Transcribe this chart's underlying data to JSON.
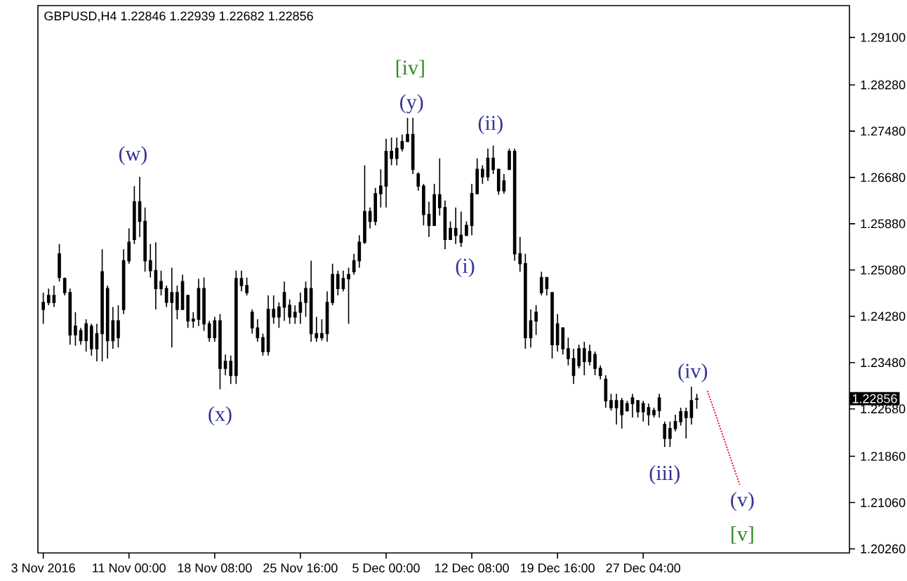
{
  "chart_data": {
    "type": "candlestick",
    "title": "GBPUSD,H4 1.22846 1.22939 1.22682 1.22856",
    "categories": [
      "3 Nov 2016",
      null,
      null,
      null,
      null,
      null,
      null,
      null,
      null,
      null,
      null,
      null,
      null,
      null,
      null,
      null,
      "11 Nov 00:00",
      null,
      null,
      null,
      null,
      null,
      null,
      null,
      null,
      null,
      null,
      null,
      null,
      null,
      null,
      null,
      "18 Nov 08:00",
      null,
      null,
      null,
      null,
      null,
      null,
      null,
      null,
      null,
      null,
      null,
      null,
      null,
      null,
      null,
      "25 Nov 16:00",
      null,
      null,
      null,
      null,
      null,
      null,
      null,
      null,
      null,
      null,
      null,
      null,
      null,
      null,
      null,
      "5 Dec 00:00",
      null,
      null,
      null,
      null,
      null,
      null,
      null,
      null,
      null,
      null,
      null,
      null,
      null,
      null,
      null,
      "12 Dec 08:00",
      null,
      null,
      null,
      null,
      null,
      null,
      null,
      null,
      null,
      null,
      null,
      null,
      null,
      null,
      null,
      "19 Dec 16:00",
      null,
      null,
      null,
      null,
      null,
      null,
      null,
      null,
      null,
      null,
      null,
      null,
      null,
      null,
      null,
      "27 Dec 04:00",
      null,
      null,
      null,
      null,
      null,
      null,
      null,
      null,
      null,
      null,
      null,
      null,
      null,
      null,
      null,
      null,
      null,
      null,
      null,
      null,
      null,
      null,
      null,
      null,
      null,
      null,
      null,
      null,
      null,
      null,
      null,
      null,
      null,
      null,
      null,
      null,
      null,
      null
    ],
    "color": "#000000",
    "ohlc": [
      [
        1.244,
        1.2469,
        1.2415,
        1.2452
      ],
      [
        1.2452,
        1.2476,
        1.2447,
        1.2464
      ],
      [
        1.2464,
        1.2481,
        1.2444,
        1.2452
      ],
      [
        1.2495,
        1.2553,
        1.2488,
        1.2536
      ],
      [
        1.2493,
        1.2495,
        1.2464,
        1.2469
      ],
      [
        1.2469,
        1.2476,
        1.2379,
        1.2396
      ],
      [
        1.2396,
        1.2435,
        1.2377,
        1.2411
      ],
      [
        1.2403,
        1.2408,
        1.2379,
        1.2386
      ],
      [
        1.2386,
        1.2423,
        1.2367,
        1.2415
      ],
      [
        1.2411,
        1.2415,
        1.236,
        1.2372
      ],
      [
        1.2372,
        1.2415,
        1.235,
        1.2398
      ],
      [
        1.2398,
        1.2544,
        1.235,
        1.2505
      ],
      [
        1.2476,
        1.2481,
        1.2355,
        1.2386
      ],
      [
        1.2386,
        1.2444,
        1.2372,
        1.242
      ],
      [
        1.242,
        1.2447,
        1.2374,
        1.2391
      ],
      [
        1.244,
        1.2544,
        1.2432,
        1.2524
      ],
      [
        1.2524,
        1.258,
        1.2519,
        1.2556
      ],
      [
        1.2561,
        1.2653,
        1.2553,
        1.2626
      ],
      [
        1.2626,
        1.2669,
        1.2565,
        1.2592
      ],
      [
        1.2592,
        1.2616,
        1.2505,
        1.2524
      ],
      [
        1.2524,
        1.2553,
        1.2495,
        1.2507
      ],
      [
        1.2507,
        1.2556,
        1.244,
        1.2476
      ],
      [
        1.2476,
        1.2507,
        1.2464,
        1.2488
      ],
      [
        1.2476,
        1.2481,
        1.2444,
        1.2452
      ],
      [
        1.2452,
        1.2512,
        1.2374,
        1.2469
      ],
      [
        1.2469,
        1.2481,
        1.2423,
        1.244
      ],
      [
        1.244,
        1.25,
        1.244,
        1.2488
      ],
      [
        1.2464,
        1.2464,
        1.2408,
        1.242
      ],
      [
        1.242,
        1.2435,
        1.2408,
        1.2423
      ],
      [
        1.2423,
        1.2493,
        1.2411,
        1.2476
      ],
      [
        1.2476,
        1.2495,
        1.2403,
        1.2415
      ],
      [
        1.2415,
        1.242,
        1.2384,
        1.2391
      ],
      [
        1.2391,
        1.2427,
        1.2384,
        1.242
      ],
      [
        1.242,
        1.2432,
        1.2302,
        1.2338
      ],
      [
        1.2338,
        1.2362,
        1.2326,
        1.235
      ],
      [
        1.235,
        1.236,
        1.2311,
        1.2326
      ],
      [
        1.2326,
        1.2507,
        1.2311,
        1.2493
      ],
      [
        1.2493,
        1.2507,
        1.2471,
        1.2481
      ],
      [
        1.2481,
        1.2495,
        1.2464,
        1.2469
      ],
      [
        1.2435,
        1.244,
        1.2398,
        1.2408
      ],
      [
        1.2408,
        1.2423,
        1.2384,
        1.2391
      ],
      [
        1.2391,
        1.2398,
        1.236,
        1.2367
      ],
      [
        1.2367,
        1.2464,
        1.236,
        1.244
      ],
      [
        1.244,
        1.2464,
        1.2415,
        1.2427
      ],
      [
        1.2427,
        1.2452,
        1.2408,
        1.2444
      ],
      [
        1.2444,
        1.2488,
        1.242,
        1.2469
      ],
      [
        1.2447,
        1.2457,
        1.2415,
        1.2427
      ],
      [
        1.2427,
        1.2447,
        1.2415,
        1.2435
      ],
      [
        1.2435,
        1.2469,
        1.2415,
        1.2452
      ],
      [
        1.2452,
        1.2488,
        1.2427,
        1.2476
      ],
      [
        1.2476,
        1.2524,
        1.2384,
        1.2398
      ],
      [
        1.2398,
        1.2427,
        1.2384,
        1.2391
      ],
      [
        1.2391,
        1.2423,
        1.2386,
        1.2398
      ],
      [
        1.2398,
        1.2471,
        1.2384,
        1.2452
      ],
      [
        1.2452,
        1.2519,
        1.2447,
        1.25
      ],
      [
        1.25,
        1.2507,
        1.2464,
        1.2476
      ],
      [
        1.2476,
        1.2507,
        1.2471,
        1.2493
      ],
      [
        1.2493,
        1.2512,
        1.2415,
        1.25
      ],
      [
        1.2505,
        1.2536,
        1.25,
        1.2524
      ],
      [
        1.2524,
        1.2568,
        1.2512,
        1.2556
      ],
      [
        1.2556,
        1.2689,
        1.2553,
        1.2609
      ],
      [
        1.2609,
        1.2616,
        1.258,
        1.2592
      ],
      [
        1.2592,
        1.265,
        1.2585,
        1.264
      ],
      [
        1.264,
        1.2682,
        1.2616,
        1.2653
      ],
      [
        1.2653,
        1.2735,
        1.2616,
        1.2713
      ],
      [
        1.2713,
        1.2737,
        1.2689,
        1.2701
      ],
      [
        1.2701,
        1.2737,
        1.2689,
        1.2718
      ],
      [
        1.2718,
        1.2742,
        1.2713,
        1.273
      ],
      [
        1.273,
        1.2771,
        1.273,
        1.2742
      ],
      [
        1.2742,
        1.2771,
        1.2674,
        1.2682
      ],
      [
        1.2674,
        1.2677,
        1.2645,
        1.2653
      ],
      [
        1.2653,
        1.2657,
        1.2585,
        1.2604
      ],
      [
        1.2604,
        1.2626,
        1.2565,
        1.2585
      ],
      [
        1.2585,
        1.2657,
        1.2585,
        1.2638
      ],
      [
        1.2638,
        1.2701,
        1.2602,
        1.2616
      ],
      [
        1.2616,
        1.2628,
        1.2544,
        1.2561
      ],
      [
        1.2561,
        1.2592,
        1.2561,
        1.258
      ],
      [
        1.258,
        1.2616,
        1.2553,
        1.2568
      ],
      [
        1.2568,
        1.2609,
        1.2548,
        1.2556
      ],
      [
        1.2568,
        1.2592,
        1.2568,
        1.2585
      ],
      [
        1.2585,
        1.2657,
        1.2568,
        1.264
      ],
      [
        1.264,
        1.2701,
        1.264,
        1.2682
      ],
      [
        1.2682,
        1.2689,
        1.2657,
        1.2669
      ],
      [
        1.2669,
        1.2718,
        1.2662,
        1.2701
      ],
      [
        1.2701,
        1.2723,
        1.2674,
        1.2682
      ],
      [
        1.2682,
        1.2682,
        1.2638,
        1.2645
      ],
      [
        1.2645,
        1.2674,
        1.264,
        1.2662
      ],
      [
        1.2682,
        1.2718,
        1.2682,
        1.2713
      ],
      [
        1.2713,
        1.2718,
        1.2524,
        1.2536
      ],
      [
        1.2536,
        1.2565,
        1.2505,
        1.2519
      ],
      [
        1.2519,
        1.2536,
        1.2372,
        1.2391
      ],
      [
        1.2391,
        1.244,
        1.2374,
        1.242
      ],
      [
        1.242,
        1.2447,
        1.2396,
        1.2435
      ],
      [
        1.2469,
        1.2505,
        1.2464,
        1.2495
      ],
      [
        1.2495,
        1.2495,
        1.2464,
        1.2476
      ],
      [
        1.2469,
        1.2469,
        1.2355,
        1.2379
      ],
      [
        1.2379,
        1.2432,
        1.2367,
        1.2415
      ],
      [
        1.2408,
        1.2408,
        1.2362,
        1.2372
      ],
      [
        1.2372,
        1.2391,
        1.2343,
        1.2355
      ],
      [
        1.2355,
        1.2372,
        1.2311,
        1.2326
      ],
      [
        1.2343,
        1.2379,
        1.2338,
        1.2372
      ],
      [
        1.2372,
        1.2384,
        1.2326,
        1.235
      ],
      [
        1.235,
        1.2379,
        1.2343,
        1.2367
      ],
      [
        1.2362,
        1.2367,
        1.2326,
        1.2338
      ],
      [
        1.2338,
        1.2343,
        1.2319,
        1.2326
      ],
      [
        1.2319,
        1.2326,
        1.227,
        1.2282
      ],
      [
        1.2282,
        1.2294,
        1.2265,
        1.227
      ],
      [
        1.227,
        1.2294,
        1.2241,
        1.2282
      ],
      [
        1.2282,
        1.2287,
        1.2234,
        1.2258
      ],
      [
        1.2265,
        1.2282,
        1.2263,
        1.2277
      ],
      [
        1.2277,
        1.2294,
        1.2253,
        1.2287
      ],
      [
        1.2282,
        1.2282,
        1.2253,
        1.2263
      ],
      [
        1.2263,
        1.2282,
        1.2246,
        1.2277
      ],
      [
        1.227,
        1.2277,
        1.2239,
        1.2258
      ],
      [
        1.2258,
        1.227,
        1.2253,
        1.2265
      ],
      [
        1.2265,
        1.2294,
        1.2253,
        1.2287
      ],
      [
        1.2241,
        1.2246,
        1.2202,
        1.2217
      ],
      [
        1.2217,
        1.2246,
        1.2202,
        1.2234
      ],
      [
        1.2234,
        1.2258,
        1.2229,
        1.2246
      ],
      [
        1.2246,
        1.227,
        1.2239,
        1.2263
      ],
      [
        1.2263,
        1.227,
        1.2217,
        1.2253
      ],
      [
        1.2253,
        1.2306,
        1.2241,
        1.2282
      ],
      [
        1.22846,
        1.22939,
        1.22682,
        1.22856
      ],
      null,
      null,
      null,
      null,
      null,
      null,
      null,
      null,
      null,
      null,
      null,
      null,
      null,
      null,
      null,
      null,
      null,
      null,
      null,
      null,
      null,
      null,
      null,
      null,
      null,
      null,
      null,
      null
    ],
    "series": [
      {
        "type": "line",
        "color": "#dc143c",
        "line_style": "dotted",
        "values": [
          null,
          null,
          null,
          null,
          null,
          null,
          null,
          null,
          null,
          null,
          null,
          null,
          null,
          null,
          null,
          null,
          null,
          null,
          null,
          null,
          null,
          null,
          null,
          null,
          null,
          null,
          null,
          null,
          null,
          null,
          null,
          null,
          null,
          null,
          null,
          null,
          null,
          null,
          null,
          null,
          null,
          null,
          null,
          null,
          null,
          null,
          null,
          null,
          null,
          null,
          null,
          null,
          null,
          null,
          null,
          null,
          null,
          null,
          null,
          null,
          null,
          null,
          null,
          null,
          null,
          null,
          null,
          null,
          null,
          null,
          null,
          null,
          null,
          null,
          null,
          null,
          null,
          null,
          null,
          null,
          null,
          null,
          null,
          null,
          null,
          null,
          null,
          null,
          null,
          null,
          null,
          null,
          null,
          null,
          null,
          null,
          null,
          null,
          null,
          null,
          null,
          null,
          null,
          null,
          null,
          null,
          null,
          null,
          null,
          null,
          null,
          null,
          null,
          null,
          null,
          null,
          null,
          null,
          null,
          null,
          null,
          null,
          null,
          null,
          1.2299,
          null,
          null,
          null,
          null,
          null,
          1.2137,
          null,
          null,
          null,
          null,
          null,
          null,
          null,
          null,
          null,
          null,
          null,
          null,
          null,
          null,
          null,
          null,
          null,
          null,
          null,
          null
        ]
      }
    ],
    "ylim": [
      1.2019,
      1.2965
    ],
    "yticks": [
      {
        "value": 1.2026,
        "label": "1.20260"
      },
      {
        "value": 1.2106,
        "label": "1.21060"
      },
      {
        "value": 1.2186,
        "label": "1.21860"
      },
      {
        "value": 1.2268,
        "label": "1.22680"
      },
      {
        "value": 1.2348,
        "label": "1.23480"
      },
      {
        "value": 1.2428,
        "label": "1.24280"
      },
      {
        "value": 1.2508,
        "label": "1.25080"
      },
      {
        "value": 1.2588,
        "label": "1.25880"
      },
      {
        "value": 1.2668,
        "label": "1.26680"
      },
      {
        "value": 1.2748,
        "label": "1.27480"
      },
      {
        "value": 1.2828,
        "label": "1.28280"
      },
      {
        "value": 1.291,
        "label": "1.29100"
      }
    ],
    "annotations": [
      "(w)",
      "(x)",
      "[iv]",
      {
        "text": "(y)",
        "y": 1.2771
      },
      "(i)",
      "(ii)",
      "(iii)",
      {
        "text": "(iv)",
        "y": 1.2306
      },
      "(v)",
      "[v]",
      "1.22856"
    ]
  }
}
